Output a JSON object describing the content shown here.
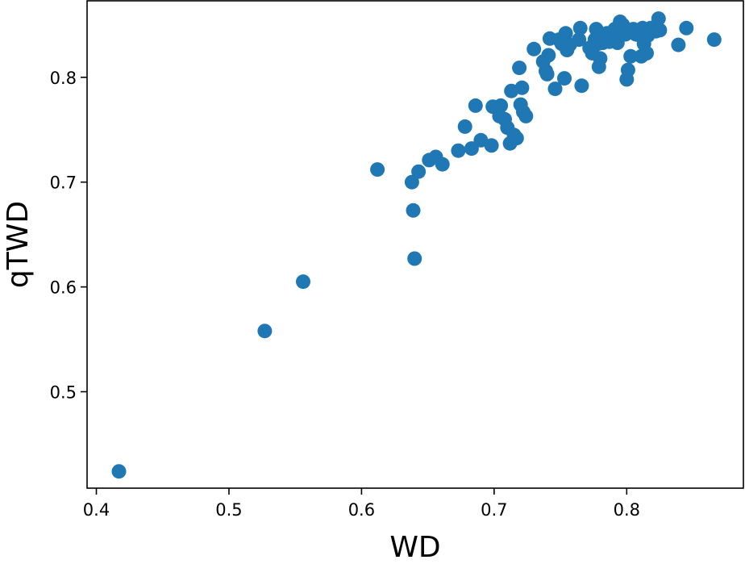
{
  "chart_data": {
    "type": "scatter",
    "title": "",
    "xlabel": "WD",
    "ylabel": "qTWD",
    "xlim": [
      0.393,
      0.888
    ],
    "ylim": [
      0.408,
      0.873
    ],
    "xticks": [
      "0.4",
      "0.5",
      "0.6",
      "0.7",
      "0.8"
    ],
    "yticks": [
      "0.5",
      "0.6",
      "0.7",
      "0.8"
    ],
    "grid": false,
    "legend": "none",
    "marker_color": "#1f77b4",
    "series": [
      {
        "points": [
          [
            0.417,
            0.424
          ],
          [
            0.527,
            0.558
          ],
          [
            0.556,
            0.605
          ],
          [
            0.612,
            0.712
          ],
          [
            0.638,
            0.7
          ],
          [
            0.639,
            0.673
          ],
          [
            0.64,
            0.627
          ],
          [
            0.643,
            0.71
          ],
          [
            0.651,
            0.721
          ],
          [
            0.656,
            0.724
          ],
          [
            0.661,
            0.717
          ],
          [
            0.673,
            0.73
          ],
          [
            0.678,
            0.753
          ],
          [
            0.683,
            0.732
          ],
          [
            0.686,
            0.773
          ],
          [
            0.69,
            0.74
          ],
          [
            0.698,
            0.735
          ],
          [
            0.699,
            0.772
          ],
          [
            0.704,
            0.763
          ],
          [
            0.705,
            0.773
          ],
          [
            0.708,
            0.76
          ],
          [
            0.71,
            0.752
          ],
          [
            0.712,
            0.737
          ],
          [
            0.713,
            0.787
          ],
          [
            0.715,
            0.745
          ],
          [
            0.717,
            0.742
          ],
          [
            0.719,
            0.809
          ],
          [
            0.72,
            0.774
          ],
          [
            0.721,
            0.79
          ],
          [
            0.722,
            0.767
          ],
          [
            0.724,
            0.763
          ],
          [
            0.73,
            0.827
          ],
          [
            0.737,
            0.815
          ],
          [
            0.739,
            0.806
          ],
          [
            0.74,
            0.803
          ],
          [
            0.741,
            0.821
          ],
          [
            0.742,
            0.837
          ],
          [
            0.746,
            0.789
          ],
          [
            0.749,
            0.836
          ],
          [
            0.751,
            0.832
          ],
          [
            0.753,
            0.799
          ],
          [
            0.754,
            0.842
          ],
          [
            0.755,
            0.826
          ],
          [
            0.757,
            0.831
          ],
          [
            0.764,
            0.836
          ],
          [
            0.765,
            0.847
          ],
          [
            0.766,
            0.792
          ],
          [
            0.772,
            0.828
          ],
          [
            0.774,
            0.823
          ],
          [
            0.776,
            0.836
          ],
          [
            0.777,
            0.846
          ],
          [
            0.778,
            0.832
          ],
          [
            0.779,
            0.81
          ],
          [
            0.78,
            0.818
          ],
          [
            0.782,
            0.833
          ],
          [
            0.784,
            0.84
          ],
          [
            0.785,
            0.842
          ],
          [
            0.787,
            0.834
          ],
          [
            0.789,
            0.838
          ],
          [
            0.791,
            0.846
          ],
          [
            0.793,
            0.833
          ],
          [
            0.795,
            0.853
          ],
          [
            0.797,
            0.85
          ],
          [
            0.799,
            0.841
          ],
          [
            0.8,
            0.798
          ],
          [
            0.801,
            0.807
          ],
          [
            0.803,
            0.82
          ],
          [
            0.805,
            0.846
          ],
          [
            0.807,
            0.841
          ],
          [
            0.808,
            0.843
          ],
          [
            0.81,
            0.84
          ],
          [
            0.811,
            0.82
          ],
          [
            0.812,
            0.847
          ],
          [
            0.813,
            0.832
          ],
          [
            0.814,
            0.845
          ],
          [
            0.815,
            0.823
          ],
          [
            0.816,
            0.84
          ],
          [
            0.818,
            0.847
          ],
          [
            0.822,
            0.844
          ],
          [
            0.824,
            0.856
          ],
          [
            0.825,
            0.845
          ],
          [
            0.839,
            0.831
          ],
          [
            0.845,
            0.847
          ],
          [
            0.866,
            0.836
          ]
        ]
      }
    ]
  }
}
